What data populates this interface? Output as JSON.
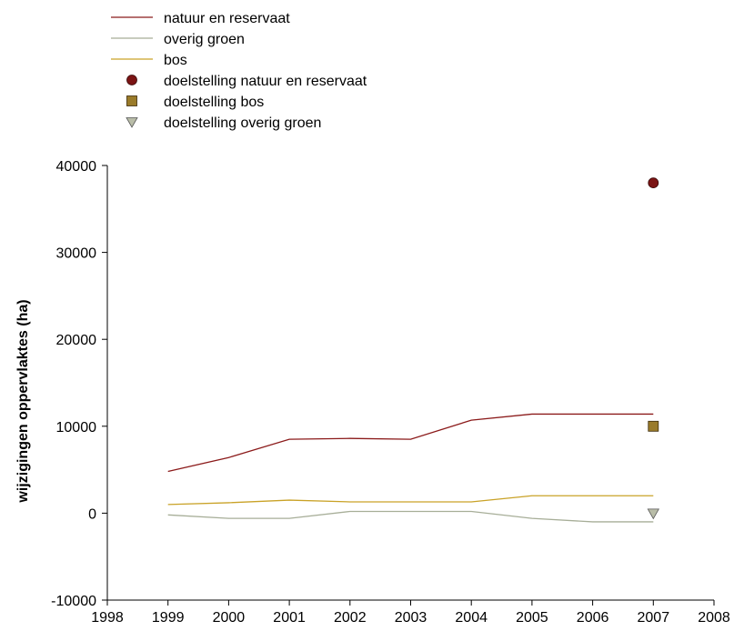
{
  "chart_data": {
    "type": "line",
    "title": "",
    "xlabel": "",
    "ylabel": "wijzigingen oppervlaktes (ha)",
    "xlim": [
      1998,
      2008
    ],
    "ylim": [
      -10000,
      40000
    ],
    "x_ticks": [
      "1998",
      "1999",
      "2000",
      "2001",
      "2002",
      "2003",
      "2004",
      "2005",
      "2006",
      "2007",
      "2008"
    ],
    "y_ticks": [
      "-10000",
      "0",
      "10000",
      "20000",
      "30000",
      "40000"
    ],
    "grid": false,
    "legend_position": "top-left, above plot",
    "series": [
      {
        "name": "natuur en reservaat",
        "kind": "line",
        "color": "#8B1A1A",
        "x": [
          1999,
          2000,
          2001,
          2002,
          2003,
          2004,
          2005,
          2006,
          2007
        ],
        "y": [
          4800,
          6400,
          8500,
          8600,
          8500,
          10700,
          11400,
          11400,
          11400
        ]
      },
      {
        "name": "overig groen",
        "kind": "line",
        "color": "#A7AE98",
        "x": [
          1999,
          2000,
          2001,
          2002,
          2003,
          2004,
          2005,
          2006,
          2007
        ],
        "y": [
          -200,
          -600,
          -600,
          200,
          200,
          200,
          -600,
          -1000,
          -1000
        ]
      },
      {
        "name": "bos",
        "kind": "line",
        "color": "#C9A227",
        "x": [
          1999,
          2000,
          2001,
          2002,
          2003,
          2004,
          2005,
          2006,
          2007
        ],
        "y": [
          1000,
          1200,
          1500,
          1300,
          1300,
          1300,
          2000,
          2000,
          2000
        ]
      },
      {
        "name": "doelstelling natuur en reservaat",
        "kind": "point",
        "marker": "circle",
        "color": "#7B1414",
        "x": [
          2007
        ],
        "y": [
          38000
        ]
      },
      {
        "name": "doelstelling bos",
        "kind": "point",
        "marker": "square",
        "color": "#9A7B2A",
        "x": [
          2007
        ],
        "y": [
          10000
        ]
      },
      {
        "name": "doelstelling overig groen",
        "kind": "point",
        "marker": "triangle-down",
        "color": "#B9BDA8",
        "x": [
          2007
        ],
        "y": [
          0
        ]
      }
    ]
  }
}
